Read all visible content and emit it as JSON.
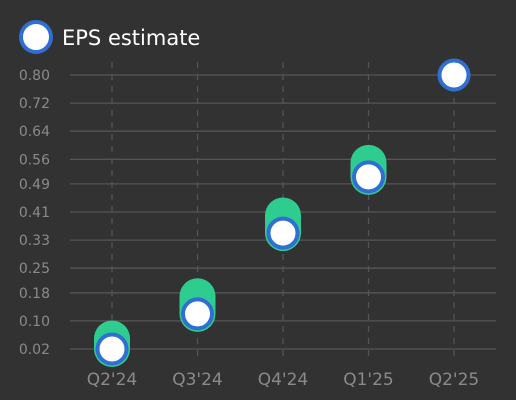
{
  "colors": {
    "background": "#323232",
    "grid": "#555555",
    "tick_text": "#8a8a8a",
    "legend_text": "#ffffff",
    "estimate_marker_fill": "#ffffff",
    "estimate_marker_stroke": "#2f6fd1",
    "actual_bar": "#2ecc8f"
  },
  "legend": {
    "label": "EPS estimate",
    "icon": "circle-marker-icon",
    "placement": "top-left"
  },
  "chart_data": {
    "type": "scatter",
    "categories": [
      "Q2'24",
      "Q3'24",
      "Q4'24",
      "Q1'25",
      "Q2'25"
    ],
    "series": [
      {
        "name": "EPS estimate",
        "values": [
          0.02,
          0.12,
          0.35,
          0.51,
          0.8
        ]
      },
      {
        "values": [
          0.05,
          0.17,
          0.4,
          0.55,
          null
        ]
      }
    ],
    "y_ticks": [
      "0.02",
      "0.10",
      "0.18",
      "0.25",
      "0.33",
      "0.41",
      "0.49",
      "0.56",
      "0.64",
      "0.72",
      "0.80"
    ],
    "ylim": [
      0.02,
      0.8
    ],
    "grid": {
      "horizontal": true,
      "vertical": "dashed"
    },
    "title": "",
    "xlabel": "",
    "ylabel": ""
  }
}
